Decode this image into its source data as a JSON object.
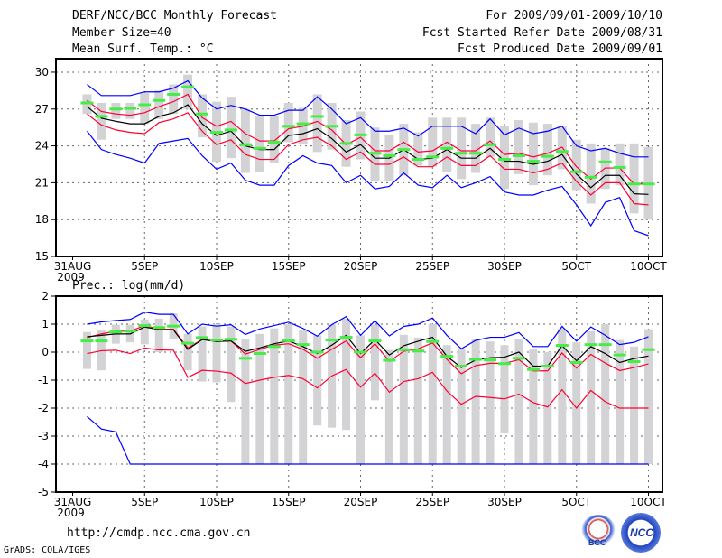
{
  "header": {
    "title": "DERF/NCC/BCC Monthly Forecast",
    "member": "Member Size=40",
    "variable": "Mean Surf. Temp.: °C",
    "period": "For 2009/09/01-2009/10/10",
    "started": "Fcst Started Refer Date 2009/08/31",
    "produced": "Fcst Produced Date 2009/09/01"
  },
  "footer": {
    "url": "http://cmdp.ncc.cma.gov.cn",
    "grads": "GrADS: COLA/IGES",
    "logo_bcc": "BCC",
    "logo_ncc": "NCC"
  },
  "colors": {
    "ensemble_range": "#0000ff",
    "spread": "#ff0033",
    "mean": "#000000",
    "observed": "#44ee44",
    "box": "#d3d3d6"
  },
  "chart_data": [
    {
      "type": "line",
      "title": "Mean Surf. Temp.: °C",
      "x_tick_labels": [
        "31AUG",
        "5SEP",
        "10SEP",
        "15SEP",
        "20SEP",
        "25SEP",
        "30SEP",
        "5OCT",
        "10OCT"
      ],
      "x_tick_days": [
        0,
        5,
        10,
        15,
        20,
        25,
        30,
        35,
        40
      ],
      "x_year_label": "2009",
      "y_ticks": [
        15,
        18,
        21,
        24,
        27,
        30
      ],
      "ylim": [
        15,
        31.1
      ],
      "days": [
        1,
        2,
        3,
        4,
        5,
        6,
        7,
        8,
        9,
        10,
        11,
        12,
        13,
        14,
        15,
        16,
        17,
        18,
        19,
        20,
        21,
        22,
        23,
        24,
        25,
        26,
        27,
        28,
        29,
        30,
        31,
        32,
        33,
        34,
        35,
        36,
        37,
        38,
        39,
        40
      ],
      "series": [
        {
          "name": "ensemble max",
          "color": "#0000ff",
          "values": [
            29.0,
            28.1,
            28.1,
            28.1,
            28.4,
            28.4,
            28.7,
            29.3,
            27.9,
            27.0,
            27.3,
            27.0,
            26.5,
            26.5,
            26.9,
            26.9,
            28.0,
            27.0,
            25.8,
            26.3,
            25.2,
            25.2,
            25.45,
            24.8,
            25.6,
            25.6,
            25.6,
            25.0,
            26.2,
            24.9,
            25.45,
            25.0,
            25.2,
            25.6,
            24.0,
            23.6,
            23.8,
            23.4,
            23.1,
            23.1
          ]
        },
        {
          "name": "upper spread",
          "color": "#ff0033",
          "values": [
            27.7,
            26.8,
            26.6,
            26.5,
            26.7,
            27.2,
            27.6,
            28.2,
            26.3,
            25.6,
            26.0,
            25.0,
            24.4,
            24.4,
            25.4,
            25.6,
            26.0,
            25.3,
            24.1,
            24.7,
            23.6,
            23.6,
            24.3,
            23.5,
            23.6,
            24.3,
            23.6,
            23.6,
            24.4,
            23.3,
            23.4,
            23.1,
            23.4,
            23.9,
            22.3,
            21.3,
            22.2,
            22.2,
            20.9,
            20.9
          ]
        },
        {
          "name": "ensemble mean",
          "color": "#000000",
          "values": [
            27.2,
            26.25,
            26.0,
            25.8,
            25.8,
            26.4,
            26.7,
            27.35,
            25.8,
            24.85,
            25.2,
            24.0,
            23.7,
            23.7,
            24.85,
            25.0,
            25.4,
            24.6,
            23.5,
            24.1,
            23.0,
            23.0,
            23.7,
            22.9,
            23.0,
            23.7,
            23.0,
            23.0,
            23.8,
            22.75,
            22.75,
            22.5,
            22.75,
            23.3,
            21.7,
            20.6,
            21.6,
            21.6,
            20.1,
            20.05
          ]
        },
        {
          "name": "lower spread",
          "color": "#ff0033",
          "values": [
            26.6,
            25.7,
            25.3,
            25.1,
            25.0,
            25.9,
            26.2,
            26.7,
            25.2,
            24.1,
            24.5,
            23.3,
            22.9,
            22.9,
            24.1,
            24.5,
            24.7,
            24.0,
            22.9,
            23.5,
            22.5,
            22.5,
            23.1,
            22.3,
            22.3,
            23.1,
            22.4,
            22.4,
            23.2,
            22.1,
            22.1,
            21.8,
            22.1,
            22.6,
            21.1,
            20.0,
            21.0,
            21.0,
            19.3,
            19.2
          ]
        },
        {
          "name": "ensemble min",
          "color": "#0000ff",
          "values": [
            25.2,
            23.7,
            23.3,
            23.0,
            22.6,
            24.2,
            24.4,
            24.6,
            23.2,
            22.1,
            22.6,
            21.2,
            20.8,
            20.8,
            22.4,
            23.2,
            22.6,
            22.4,
            21.0,
            21.6,
            20.5,
            20.7,
            21.8,
            20.8,
            20.6,
            21.6,
            20.6,
            21.0,
            21.5,
            20.25,
            20.0,
            20.0,
            20.4,
            20.7,
            19.2,
            17.5,
            19.4,
            19.8,
            17.1,
            16.7
          ]
        }
      ],
      "observed": [
        27.5,
        26.4,
        27.0,
        27.05,
        27.35,
        27.7,
        28.2,
        28.8,
        26.6,
        25.1,
        25.3,
        24.1,
        23.8,
        24.3,
        25.6,
        25.8,
        26.4,
        25.6,
        24.2,
        24.9,
        23.4,
        23.2,
        23.7,
        22.9,
        23.1,
        23.8,
        23.4,
        23.4,
        24.1,
        22.9,
        23.2,
        22.75,
        23.15,
        23.55,
        21.9,
        21.45,
        22.7,
        22.25,
        20.9,
        20.9
      ],
      "box_low": [
        26.6,
        24.5,
        26.2,
        26.2,
        25.8,
        26.2,
        26.6,
        27.0,
        24.7,
        22.7,
        23.0,
        21.8,
        21.9,
        22.6,
        24.3,
        24.1,
        23.5,
        23.7,
        22.3,
        22.9,
        21.1,
        21.1,
        21.6,
        22.4,
        22.3,
        21.9,
        21.3,
        21.8,
        23.1,
        20.5,
        21.7,
        20.8,
        21.6,
        22.1,
        20.4,
        19.3,
        20.5,
        20.8,
        18.5,
        18.0
      ],
      "box_high": [
        28.2,
        27.5,
        27.5,
        27.5,
        28.3,
        28.5,
        29.0,
        29.8,
        28.2,
        27.6,
        28.0,
        27.0,
        26.4,
        26.4,
        27.5,
        27.1,
        28.2,
        27.5,
        26.1,
        26.8,
        25.5,
        24.9,
        25.8,
        25.1,
        26.3,
        26.3,
        26.3,
        25.8,
        26.3,
        25.6,
        26.1,
        25.9,
        25.8,
        25.6,
        24.5,
        24.2,
        23.8,
        24.2,
        24.2,
        23.9
      ]
    },
    {
      "type": "line",
      "title": "Prec.: log(mm/d)",
      "x_tick_labels": [
        "31AUG",
        "5SEP",
        "10SEP",
        "15SEP",
        "20SEP",
        "25SEP",
        "30SEP",
        "5OCT",
        "10OCT"
      ],
      "x_tick_days": [
        0,
        5,
        10,
        15,
        20,
        25,
        30,
        35,
        40
      ],
      "x_year_label": "2009",
      "y_ticks": [
        -5,
        -4,
        -3,
        -2,
        -1,
        0,
        1,
        2
      ],
      "ylim": [
        -5,
        2
      ],
      "days": [
        1,
        2,
        3,
        4,
        5,
        6,
        7,
        8,
        9,
        10,
        11,
        12,
        13,
        14,
        15,
        16,
        17,
        18,
        19,
        20,
        21,
        22,
        23,
        24,
        25,
        26,
        27,
        28,
        29,
        30,
        31,
        32,
        33,
        34,
        35,
        36,
        37,
        38,
        39,
        40
      ],
      "series": [
        {
          "name": "ensemble max",
          "color": "#0000ff",
          "values": [
            1.0,
            1.08,
            1.13,
            1.17,
            1.43,
            1.35,
            1.35,
            0.65,
            1.0,
            0.93,
            0.98,
            0.63,
            0.83,
            0.95,
            1.07,
            0.85,
            0.57,
            0.98,
            1.27,
            0.6,
            1.12,
            0.58,
            0.92,
            1.0,
            1.22,
            0.6,
            0.12,
            0.42,
            0.53,
            0.53,
            0.7,
            0.2,
            0.2,
            0.92,
            0.39,
            0.9,
            0.6,
            0.27,
            0.35,
            0.55
          ]
        },
        {
          "name": "upper spread",
          "color": "#ff0033",
          "values": [
            0.52,
            0.65,
            0.75,
            0.75,
            0.95,
            0.82,
            0.82,
            0.15,
            0.45,
            0.38,
            0.4,
            -0.07,
            0.1,
            0.25,
            0.3,
            0.1,
            -0.22,
            0.1,
            0.4,
            -0.2,
            0.3,
            -0.33,
            0.03,
            0.12,
            0.33,
            -0.26,
            -0.77,
            -0.48,
            -0.4,
            -0.4,
            -0.27,
            -0.67,
            -0.67,
            -0.03,
            -0.57,
            -0.08,
            -0.39,
            -0.66,
            -0.55,
            -0.42
          ]
        },
        {
          "name": "ensemble mean",
          "color": "#000000",
          "values": [
            0.55,
            0.6,
            0.65,
            0.65,
            0.9,
            0.8,
            0.8,
            0.1,
            0.45,
            0.38,
            0.4,
            0.03,
            0.15,
            0.3,
            0.4,
            0.2,
            -0.05,
            0.25,
            0.6,
            -0.05,
            0.45,
            -0.1,
            0.23,
            0.39,
            0.53,
            -0.15,
            -0.55,
            -0.28,
            -0.2,
            -0.18,
            0.0,
            -0.5,
            -0.5,
            0.23,
            -0.31,
            0.2,
            -0.05,
            -0.37,
            -0.23,
            -0.14
          ]
        },
        {
          "name": "lower spread",
          "color": "#ff0033",
          "values": [
            -0.05,
            0.05,
            0.07,
            -0.05,
            0.15,
            0.08,
            0.07,
            -0.9,
            -0.65,
            -0.68,
            -0.75,
            -1.12,
            -1.0,
            -0.9,
            -0.83,
            -0.95,
            -1.28,
            -0.85,
            -0.62,
            -1.25,
            -0.75,
            -1.43,
            -1.05,
            -0.95,
            -0.72,
            -1.39,
            -1.86,
            -1.58,
            -1.62,
            -1.67,
            -1.5,
            -1.8,
            -1.96,
            -1.34,
            -2.0,
            -1.37,
            -1.77,
            -2.0,
            -2.0,
            -2.0
          ]
        },
        {
          "name": "ensemble min",
          "color": "#0000ff",
          "values": [
            -2.3,
            -2.75,
            -2.85,
            -4,
            -4,
            -4,
            -4,
            -4,
            -4,
            -4,
            -4,
            -4,
            -4,
            -4,
            -4,
            -4,
            -4,
            -4,
            -4,
            -4,
            -4,
            -4,
            -4,
            -4,
            -4,
            -4,
            -4,
            -4,
            -4,
            -4,
            -4,
            -4,
            -4,
            -4,
            -4,
            -4,
            -4,
            -4,
            -4,
            -4
          ]
        }
      ],
      "observed": [
        0.4,
        0.4,
        0.72,
        0.75,
        0.95,
        0.88,
        0.93,
        0.32,
        0.52,
        0.43,
        0.46,
        -0.22,
        -0.05,
        0.2,
        0.41,
        0.27,
        0.0,
        0.43,
        0.53,
        0.0,
        0.4,
        -0.29,
        0.09,
        0.04,
        0.38,
        -0.15,
        -0.5,
        -0.26,
        -0.28,
        -0.41,
        -0.22,
        -0.62,
        -0.5,
        0.24,
        -0.37,
        0.27,
        0.27,
        -0.1,
        -0.34,
        0.09
      ],
      "box_low": [
        -0.6,
        -0.65,
        0.3,
        0.35,
        0.28,
        0.0,
        0.45,
        -0.65,
        -1.05,
        -1.08,
        -1.78,
        -4,
        -4,
        -4,
        -4,
        -4,
        -2.62,
        -2.7,
        -2.78,
        -4,
        -1.72,
        -4,
        -4,
        -4,
        -4,
        -4,
        -4,
        -4,
        -4,
        -2.9,
        -4,
        -4,
        -4,
        -4,
        -4,
        -4,
        -4,
        -4,
        -4,
        -4
      ],
      "box_high": [
        0.72,
        0.8,
        0.98,
        0.98,
        1.17,
        1.2,
        1.38,
        0.65,
        0.92,
        1.0,
        0.92,
        0.45,
        0.65,
        0.85,
        1.0,
        0.78,
        0.6,
        0.98,
        1.2,
        0.6,
        0.98,
        0.08,
        0.62,
        0.52,
        1.0,
        0.25,
        0.1,
        0.45,
        0.38,
        0.25,
        0.45,
        0.1,
        0.0,
        0.85,
        0.35,
        0.75,
        1.0,
        0.43,
        0.2,
        0.82
      ]
    }
  ]
}
